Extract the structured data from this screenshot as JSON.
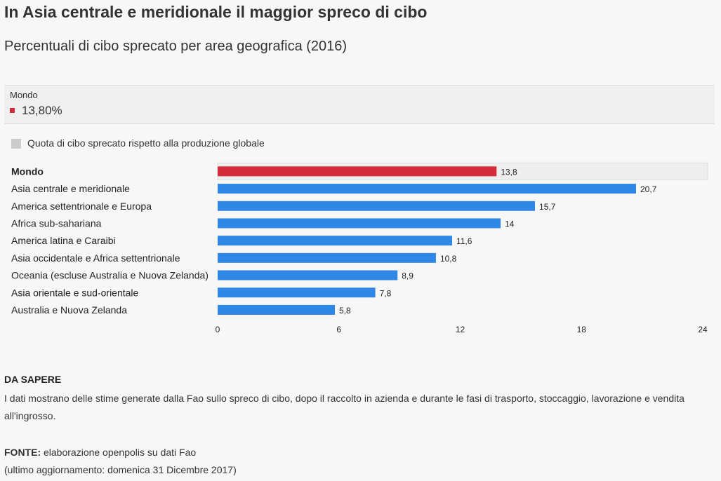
{
  "header": {
    "title": "In Asia centrale e meridionale il maggior spreco di cibo",
    "subtitle": "Percentuali di cibo sprecato per area geografica (2016)"
  },
  "info_box": {
    "label": "Mondo",
    "value": "13,80%",
    "swatch_color": "#d22b3a"
  },
  "legend": {
    "label": "Quota di cibo sprecato rispetto alla produzione globale",
    "swatch_color": "#cccccc"
  },
  "chart_data": {
    "type": "bar",
    "orientation": "horizontal",
    "categories": [
      "Mondo",
      "Asia centrale e meridionale",
      "America settentrionale e Europa",
      "Africa sub-sahariana",
      "America latina e Caraibi",
      "Asia occidentale e Africa settentrionale",
      "Oceania (escluse Australia e Nuova Zelanda)",
      "Asia orientale e sud-orientale",
      "Australia e Nuova Zelanda"
    ],
    "values": [
      13.8,
      20.7,
      15.7,
      14,
      11.6,
      10.8,
      8.9,
      7.8,
      5.8
    ],
    "value_labels": [
      "13,8",
      "20,7",
      "15,7",
      "14",
      "11,6",
      "10,8",
      "8,9",
      "7,8",
      "5,8"
    ],
    "highlight_category": "Mondo",
    "colors": {
      "default": "#2f87e6",
      "highlight": "#d22b3a",
      "highlight_bg": "#eeeeee"
    },
    "xlim": [
      0,
      24
    ],
    "xticks": [
      0,
      6,
      12,
      18,
      24
    ],
    "grid": false,
    "legend_position": "top-left"
  },
  "notes": {
    "heading": "DA SAPERE",
    "text": "I dati mostrano delle stime generate dalla Fao sullo spreco di cibo, dopo il raccolto in azienda e durante le fasi di trasporto, stoccaggio, lavorazione e vendita all'ingrosso."
  },
  "source": {
    "label": "FONTE:",
    "text": " elaborazione openpolis su dati Fao",
    "updated": "(ultimo aggiornamento: domenica 31 Dicembre 2017)"
  }
}
